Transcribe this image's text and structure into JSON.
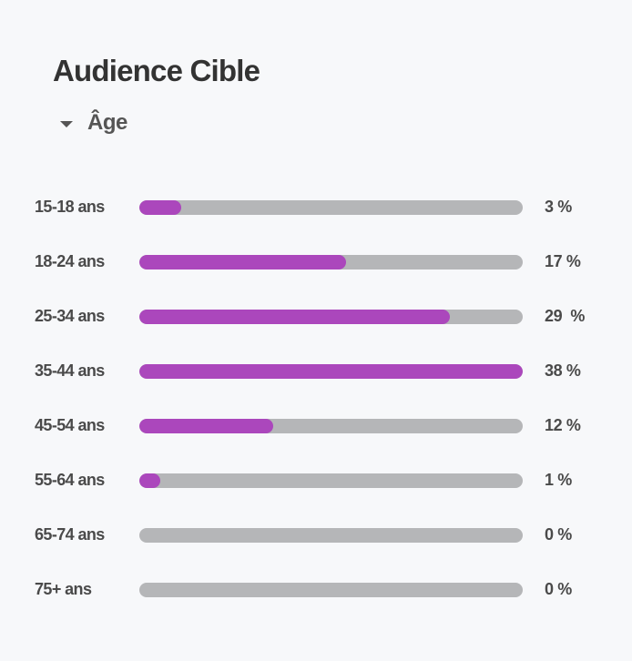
{
  "header": {
    "title": "Audience Cible",
    "section": "Âge",
    "toggle_icon": "caret-down-icon"
  },
  "colors": {
    "bar_fill": "#ab47bc",
    "bar_track": "#b5b6b8",
    "background": "#f7f8fa"
  },
  "age_groups": [
    {
      "label": "15-18 ans",
      "value_text": "3 %",
      "fill_fraction": 0.11
    },
    {
      "label": "18-24 ans",
      "value_text": "17 %",
      "fill_fraction": 0.54
    },
    {
      "label": "25-34 ans",
      "value_text": "29  %",
      "fill_fraction": 0.81
    },
    {
      "label": "35-44 ans",
      "value_text": "38 %",
      "fill_fraction": 1.0
    },
    {
      "label": "45-54 ans",
      "value_text": "12 %",
      "fill_fraction": 0.35
    },
    {
      "label": "55-64 ans",
      "value_text": "1 %",
      "fill_fraction": 0.055
    },
    {
      "label": "65-74 ans",
      "value_text": "0 %",
      "fill_fraction": 0
    },
    {
      "label": "75+ ans",
      "value_text": "0 %",
      "fill_fraction": 0
    }
  ]
}
